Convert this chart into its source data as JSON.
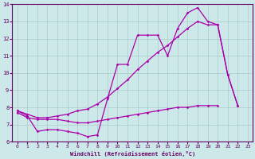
{
  "xlabel": "Windchill (Refroidissement éolien,°C)",
  "background_color": "#cce8e8",
  "grid_color": "#aacccc",
  "line_color": "#aa00aa",
  "ylim": [
    6,
    14
  ],
  "xlim": [
    -0.5,
    23.5
  ],
  "yticks": [
    6,
    7,
    8,
    9,
    10,
    11,
    12,
    13,
    14
  ],
  "xticks": [
    0,
    1,
    2,
    3,
    4,
    5,
    6,
    7,
    8,
    9,
    10,
    11,
    12,
    13,
    14,
    15,
    16,
    17,
    18,
    19,
    20,
    21,
    22,
    23
  ],
  "curve1_x": [
    0,
    1,
    2,
    3,
    4,
    5,
    6,
    7,
    8,
    9,
    10,
    11,
    12,
    13,
    14,
    15,
    16,
    17,
    18,
    19,
    20,
    21,
    22
  ],
  "curve1_y": [
    7.8,
    7.5,
    6.6,
    6.7,
    6.7,
    6.6,
    6.5,
    6.3,
    6.4,
    8.5,
    10.5,
    10.5,
    12.2,
    12.2,
    12.2,
    11.0,
    12.6,
    13.5,
    13.8,
    13.0,
    12.8,
    9.9,
    8.1
  ],
  "curve2_x": [
    0,
    1,
    2,
    3,
    4,
    5,
    6,
    7,
    8,
    9,
    10,
    11,
    12,
    13,
    14,
    15,
    16,
    17,
    18,
    19,
    20,
    21,
    22
  ],
  "curve2_y": [
    7.8,
    7.6,
    7.4,
    7.4,
    7.5,
    7.6,
    7.8,
    7.9,
    8.2,
    8.6,
    9.1,
    9.6,
    10.2,
    10.7,
    11.2,
    11.6,
    12.1,
    12.6,
    13.0,
    12.8,
    12.8,
    9.9,
    8.1
  ],
  "curve3_x": [
    0,
    1,
    2,
    3,
    4,
    5,
    6,
    7,
    8,
    9,
    10,
    11,
    12,
    13,
    14,
    15,
    16,
    17,
    18,
    19,
    20
  ],
  "curve3_y": [
    7.7,
    7.4,
    7.3,
    7.3,
    7.3,
    7.2,
    7.1,
    7.1,
    7.2,
    7.3,
    7.4,
    7.5,
    7.6,
    7.7,
    7.8,
    7.9,
    8.0,
    8.0,
    8.1,
    8.1,
    8.1
  ]
}
